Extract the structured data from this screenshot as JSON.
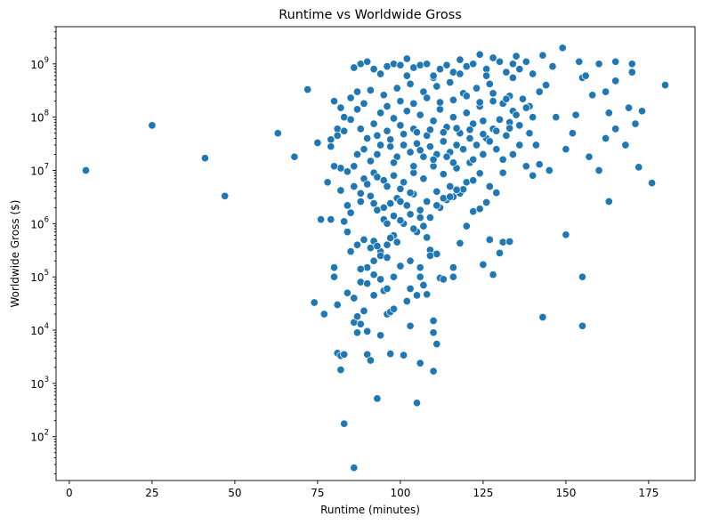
{
  "chart_data": {
    "type": "scatter",
    "title": "Runtime vs Worldwide Gross",
    "xlabel": "Runtime (minutes)",
    "ylabel": "Worldwide Gross ($)",
    "xlim": [
      -4,
      189
    ],
    "ylim": [
      15,
      5000000000
    ],
    "yscale": "log",
    "grid": false,
    "legend": "none",
    "point_color": "#1f77b4",
    "x_ticks": [
      0,
      25,
      50,
      75,
      100,
      125,
      150,
      175
    ],
    "x_tick_labels": [
      "0",
      "25",
      "50",
      "75",
      "100",
      "125",
      "150",
      "175"
    ],
    "y_ticks": [
      100,
      1000,
      10000,
      100000,
      1000000,
      10000000,
      100000000,
      1000000000
    ],
    "y_tick_labels": [
      {
        "base": "10",
        "exp": "2"
      },
      {
        "base": "10",
        "exp": "3"
      },
      {
        "base": "10",
        "exp": "4"
      },
      {
        "base": "10",
        "exp": "5"
      },
      {
        "base": "10",
        "exp": "6"
      },
      {
        "base": "10",
        "exp": "7"
      },
      {
        "base": "10",
        "exp": "8"
      },
      {
        "base": "10",
        "exp": "9"
      }
    ],
    "points": [
      [
        5,
        10000000
      ],
      [
        25,
        70000000
      ],
      [
        41,
        17000000
      ],
      [
        47,
        3300000
      ],
      [
        63,
        50000000
      ],
      [
        68,
        18000000
      ],
      [
        72,
        330000000
      ],
      [
        75,
        33000000
      ],
      [
        74,
        33000
      ],
      [
        77,
        20000
      ],
      [
        76,
        1200000
      ],
      [
        79,
        1200000
      ],
      [
        78,
        6000000
      ],
      [
        80,
        150000
      ],
      [
        80,
        100000
      ],
      [
        81,
        3700
      ],
      [
        82,
        3300
      ],
      [
        82,
        1800
      ],
      [
        83,
        3500
      ],
      [
        81,
        30000
      ],
      [
        83,
        175
      ],
      [
        86,
        26
      ],
      [
        93,
        520
      ],
      [
        105,
        430
      ],
      [
        84,
        50000
      ],
      [
        86,
        14000
      ],
      [
        87,
        9000
      ],
      [
        88,
        13000
      ],
      [
        90,
        3500
      ],
      [
        91,
        2700
      ],
      [
        94,
        8000
      ],
      [
        97,
        3600
      ],
      [
        101,
        3400
      ],
      [
        106,
        2400
      ],
      [
        110,
        1700
      ],
      [
        103,
        12000
      ],
      [
        110,
        15000
      ],
      [
        110,
        9000
      ],
      [
        111,
        5500
      ],
      [
        106,
        100000
      ],
      [
        112,
        95000
      ],
      [
        113,
        90000
      ],
      [
        108,
        47000
      ],
      [
        116,
        100000
      ],
      [
        116,
        150000
      ],
      [
        118,
        430000
      ],
      [
        120,
        900000
      ],
      [
        122,
        1700000
      ],
      [
        124,
        1900000
      ],
      [
        125,
        170000
      ],
      [
        128,
        110000
      ],
      [
        127,
        500000
      ],
      [
        130,
        280000
      ],
      [
        131,
        450000
      ],
      [
        133,
        460000
      ],
      [
        143,
        17500
      ],
      [
        150,
        620000
      ],
      [
        155,
        100000
      ],
      [
        155,
        12000
      ],
      [
        163,
        2600000
      ],
      [
        176,
        5800000
      ],
      [
        172,
        11500000
      ],
      [
        180,
        400000000
      ],
      [
        149,
        2000000000
      ],
      [
        143,
        1450000000
      ],
      [
        138,
        1100000000
      ],
      [
        135,
        1400000000
      ],
      [
        170,
        1000000000
      ],
      [
        165,
        1100000000
      ],
      [
        160,
        1000000000
      ],
      [
        154,
        1100000000
      ],
      [
        146,
        900000000
      ],
      [
        170,
        700000000
      ],
      [
        165,
        480000000
      ],
      [
        158,
        260000000
      ],
      [
        162,
        300000000
      ],
      [
        173,
        130000000
      ],
      [
        169,
        150000000
      ],
      [
        165,
        60000000
      ],
      [
        162,
        40000000
      ],
      [
        160,
        10000000
      ],
      [
        157,
        18000000
      ],
      [
        152,
        50000000
      ],
      [
        150,
        25000000
      ],
      [
        145,
        10000000
      ],
      [
        140,
        8000000
      ],
      [
        147,
        100000000
      ],
      [
        153,
        110000000
      ],
      [
        155,
        550000000
      ],
      [
        156,
        600000000
      ],
      [
        163,
        120000000
      ],
      [
        171,
        75000000
      ],
      [
        168,
        30000000
      ],
      [
        142,
        13000000
      ],
      [
        136,
        30000000
      ],
      [
        134,
        20000000
      ],
      [
        128,
        60000000
      ],
      [
        125,
        85000000
      ],
      [
        127,
        5000000
      ],
      [
        129,
        3800000
      ],
      [
        126,
        2500000
      ],
      [
        131,
        9000000
      ],
      [
        138,
        12000000
      ],
      [
        120,
        6000000
      ],
      [
        118,
        3700000
      ],
      [
        116,
        3200000
      ],
      [
        114,
        2800000
      ],
      [
        112,
        2000000
      ],
      [
        109,
        1300000
      ],
      [
        107,
        900000
      ],
      [
        105,
        700000
      ],
      [
        103,
        1500000
      ],
      [
        101,
        1000000
      ],
      [
        98,
        600000
      ],
      [
        96,
        400000
      ],
      [
        94,
        300000
      ],
      [
        92,
        200000
      ],
      [
        90,
        150000
      ],
      [
        88,
        80000
      ],
      [
        86,
        40000
      ],
      [
        85,
        300000
      ],
      [
        84,
        700000
      ],
      [
        83,
        1100000
      ],
      [
        82,
        4200000
      ],
      [
        84,
        2200000
      ],
      [
        86,
        5000000
      ],
      [
        88,
        2600000
      ],
      [
        91,
        3300000
      ],
      [
        93,
        1800000
      ],
      [
        95,
        1200000
      ],
      [
        97,
        2400000
      ],
      [
        99,
        3000000
      ],
      [
        100,
        4500000
      ],
      [
        102,
        2200000
      ],
      [
        104,
        3600000
      ],
      [
        106,
        1800000
      ],
      [
        108,
        2600000
      ],
      [
        111,
        4000000
      ],
      [
        113,
        3000000
      ],
      [
        115,
        5000000
      ],
      [
        119,
        4400000
      ],
      [
        122,
        6500000
      ],
      [
        124,
        8800000
      ],
      [
        121,
        14000000
      ],
      [
        117,
        11000000
      ],
      [
        113,
        8500000
      ],
      [
        110,
        12000000
      ],
      [
        107,
        7000000
      ],
      [
        104,
        9000000
      ],
      [
        101,
        6000000
      ],
      [
        98,
        8000000
      ],
      [
        95,
        6500000
      ],
      [
        92,
        9000000
      ],
      [
        89,
        7000000
      ],
      [
        86,
        12000000
      ],
      [
        84,
        9500000
      ],
      [
        82,
        11000000
      ],
      [
        80,
        12000000
      ],
      [
        79,
        38000000
      ],
      [
        81,
        60000000
      ],
      [
        83,
        100000000
      ],
      [
        80,
        200000000
      ],
      [
        82,
        150000000
      ],
      [
        85,
        230000000
      ],
      [
        87,
        300000000
      ],
      [
        86,
        850000000
      ],
      [
        88,
        1000000000
      ],
      [
        90,
        1100000000
      ],
      [
        92,
        800000000
      ],
      [
        94,
        650000000
      ],
      [
        96,
        900000000
      ],
      [
        98,
        1000000000
      ],
      [
        100,
        950000000
      ],
      [
        102,
        1250000000
      ],
      [
        104,
        850000000
      ],
      [
        106,
        950000000
      ],
      [
        108,
        1000000000
      ],
      [
        110,
        550000000
      ],
      [
        112,
        800000000
      ],
      [
        114,
        950000000
      ],
      [
        116,
        700000000
      ],
      [
        118,
        1200000000
      ],
      [
        120,
        900000000
      ],
      [
        122,
        1000000000
      ],
      [
        124,
        1500000000
      ],
      [
        126,
        800000000
      ],
      [
        128,
        1300000000
      ],
      [
        130,
        1100000000
      ],
      [
        132,
        700000000
      ],
      [
        134,
        1000000000
      ],
      [
        136,
        800000000
      ],
      [
        140,
        650000000
      ],
      [
        142,
        300000000
      ],
      [
        144,
        400000000
      ],
      [
        139,
        160000000
      ],
      [
        137,
        220000000
      ],
      [
        133,
        250000000
      ],
      [
        131,
        180000000
      ],
      [
        127,
        420000000
      ],
      [
        123,
        350000000
      ],
      [
        119,
        280000000
      ],
      [
        115,
        450000000
      ],
      [
        111,
        380000000
      ],
      [
        107,
        300000000
      ],
      [
        103,
        420000000
      ],
      [
        99,
        350000000
      ],
      [
        95,
        260000000
      ],
      [
        91,
        320000000
      ],
      [
        89,
        180000000
      ],
      [
        87,
        140000000
      ],
      [
        85,
        90000000
      ],
      [
        83,
        55000000
      ],
      [
        81,
        45000000
      ],
      [
        79,
        28000000
      ],
      [
        88,
        60000000
      ],
      [
        90,
        40000000
      ],
      [
        92,
        75000000
      ],
      [
        94,
        120000000
      ],
      [
        96,
        55000000
      ],
      [
        98,
        95000000
      ],
      [
        100,
        70000000
      ],
      [
        102,
        130000000
      ],
      [
        104,
        60000000
      ],
      [
        106,
        110000000
      ],
      [
        108,
        45000000
      ],
      [
        110,
        85000000
      ],
      [
        112,
        140000000
      ],
      [
        114,
        65000000
      ],
      [
        116,
        100000000
      ],
      [
        118,
        50000000
      ],
      [
        120,
        120000000
      ],
      [
        122,
        75000000
      ],
      [
        124,
        160000000
      ],
      [
        126,
        40000000
      ],
      [
        128,
        200000000
      ],
      [
        130,
        90000000
      ],
      [
        132,
        45000000
      ],
      [
        134,
        130000000
      ],
      [
        136,
        70000000
      ],
      [
        138,
        150000000
      ],
      [
        140,
        100000000
      ],
      [
        141,
        30000000
      ],
      [
        139,
        50000000
      ],
      [
        135,
        110000000
      ],
      [
        133,
        80000000
      ],
      [
        129,
        25000000
      ],
      [
        127,
        35000000
      ],
      [
        125,
        20000000
      ],
      [
        123,
        30000000
      ],
      [
        121,
        40000000
      ],
      [
        119,
        25000000
      ],
      [
        117,
        30000000
      ],
      [
        115,
        22000000
      ],
      [
        113,
        35000000
      ],
      [
        111,
        20000000
      ],
      [
        109,
        28000000
      ],
      [
        107,
        18000000
      ],
      [
        105,
        32000000
      ],
      [
        103,
        22000000
      ],
      [
        101,
        30000000
      ],
      [
        99,
        18000000
      ],
      [
        97,
        28000000
      ],
      [
        93,
        20000000
      ],
      [
        91,
        15000000
      ],
      [
        89,
        25000000
      ],
      [
        87,
        20000000
      ],
      [
        93,
        45000000
      ],
      [
        97,
        38000000
      ],
      [
        101,
        48000000
      ],
      [
        105,
        52000000
      ],
      [
        109,
        58000000
      ],
      [
        113,
        52000000
      ],
      [
        117,
        62000000
      ],
      [
        121,
        58000000
      ],
      [
        125,
        48000000
      ],
      [
        129,
        55000000
      ],
      [
        133,
        62000000
      ],
      [
        96,
        160000000
      ],
      [
        100,
        200000000
      ],
      [
        104,
        180000000
      ],
      [
        108,
        230000000
      ],
      [
        112,
        190000000
      ],
      [
        116,
        210000000
      ],
      [
        120,
        250000000
      ],
      [
        124,
        190000000
      ],
      [
        128,
        280000000
      ],
      [
        132,
        220000000
      ],
      [
        102,
        600000000
      ],
      [
        110,
        600000000
      ],
      [
        118,
        650000000
      ],
      [
        126,
        600000000
      ],
      [
        134,
        550000000
      ],
      [
        98,
        14000000
      ],
      [
        104,
        12000000
      ],
      [
        110,
        16000000
      ],
      [
        116,
        14000000
      ],
      [
        122,
        16000000
      ],
      [
        94,
        30000000
      ],
      [
        106,
        24000000
      ],
      [
        114,
        18000000
      ],
      [
        131,
        16000000
      ],
      [
        87,
        400000
      ],
      [
        89,
        500000
      ],
      [
        92,
        470000
      ],
      [
        94,
        250000
      ],
      [
        96,
        230000
      ],
      [
        97,
        540000
      ],
      [
        99,
        450000
      ],
      [
        100,
        1150000
      ],
      [
        104,
        800000
      ],
      [
        108,
        550000
      ],
      [
        96,
        1000000
      ],
      [
        109,
        320000
      ],
      [
        111,
        270000
      ],
      [
        92,
        2400000
      ],
      [
        95,
        2000000
      ],
      [
        98,
        1400000
      ],
      [
        100,
        2600000
      ],
      [
        103,
        3800000
      ],
      [
        106,
        1300000
      ],
      [
        111,
        2200000
      ],
      [
        115,
        3200000
      ],
      [
        117,
        4300000
      ],
      [
        102,
        35000
      ],
      [
        92,
        45000
      ],
      [
        95,
        55000
      ],
      [
        96,
        20000
      ],
      [
        97,
        22000
      ],
      [
        98,
        25000
      ],
      [
        90,
        9500
      ],
      [
        87,
        18000
      ],
      [
        89,
        23000
      ],
      [
        91,
        350000
      ],
      [
        93,
        380000
      ],
      [
        88,
        140000
      ],
      [
        90,
        75000
      ],
      [
        92,
        110000
      ],
      [
        94,
        90000
      ],
      [
        96,
        60000
      ],
      [
        98,
        100000
      ],
      [
        100,
        160000
      ],
      [
        103,
        200000
      ],
      [
        106,
        150000
      ],
      [
        109,
        250000
      ],
      [
        103,
        60000
      ],
      [
        105,
        45000
      ],
      [
        107,
        70000
      ],
      [
        85,
        1600000
      ],
      [
        88,
        3700000
      ],
      [
        90,
        5500000
      ],
      [
        93,
        7500000
      ],
      [
        96,
        5000000
      ]
    ]
  }
}
